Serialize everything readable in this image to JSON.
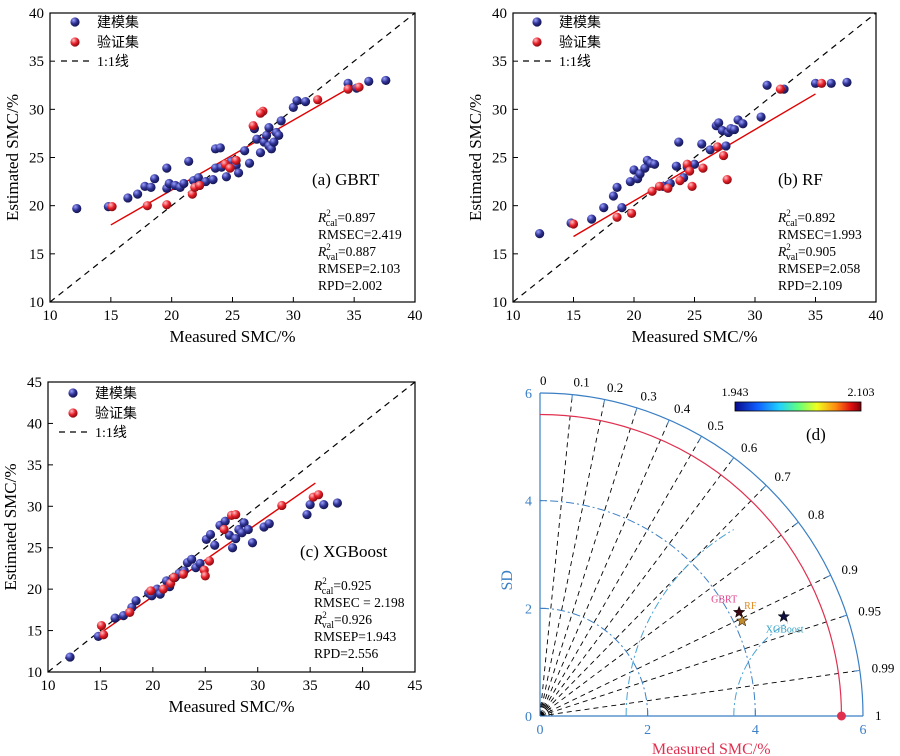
{
  "colors": {
    "train": "#2e3192",
    "train_light": "#8a8fe0",
    "val": "#e8202a",
    "val_light": "#ff9aa0",
    "fit_line": "#e00000",
    "taylor_axis": "#3b7fc4",
    "taylor_ref": "#e03050",
    "taylor_rms": "#4aa3d6",
    "gbrt_label": "#e0408a",
    "rf_label": "#e08a20",
    "xgb_label": "#30a0c0"
  },
  "icons": {
    "train_marker": "blue-sphere-marker-icon",
    "val_marker": "red-sphere-marker-icon",
    "one_to_one": "dashed-line-icon",
    "model_marker": "star-icon"
  },
  "chart_data": [
    {
      "id": "a",
      "type": "scatter",
      "model": "GBRT",
      "panel_label": "(a) GBRT",
      "xlabel": "Measured SMC/%",
      "ylabel": "Estimated SMC/%",
      "xlim": [
        10,
        40
      ],
      "ylim": [
        10,
        40
      ],
      "xticks": [
        10,
        15,
        20,
        25,
        30,
        35,
        40
      ],
      "yticks": [
        10,
        15,
        20,
        25,
        30,
        35,
        40
      ],
      "legend": {
        "position": "top-left",
        "entries": [
          "建模集",
          "验证集",
          "1:1线"
        ]
      },
      "stats": [
        {
          "sym": "R",
          "sup": "2",
          "sub": "cal",
          "text": "=0.897"
        },
        {
          "text": "RMSEC=2.419"
        },
        {
          "sym": "R",
          "sup": "2",
          "sub": "val",
          "text": "=0.887"
        },
        {
          "text": "RMSEP=2.103"
        },
        {
          "text": "RPD=2.002"
        }
      ],
      "fit_line": [
        [
          15,
          18.0
        ],
        [
          35,
          32.5
        ]
      ],
      "series": [
        {
          "name": "建模集",
          "points": [
            [
              12.2,
              19.7
            ],
            [
              14.8,
              19.9
            ],
            [
              16.4,
              20.8
            ],
            [
              17.2,
              21.2
            ],
            [
              17.8,
              22.0
            ],
            [
              18.3,
              21.9
            ],
            [
              18.6,
              22.8
            ],
            [
              19.6,
              21.8
            ],
            [
              19.8,
              22.3
            ],
            [
              19.6,
              23.9
            ],
            [
              20.3,
              22.1
            ],
            [
              20.7,
              21.9
            ],
            [
              21.0,
              22.3
            ],
            [
              21.4,
              24.6
            ],
            [
              21.8,
              22.6
            ],
            [
              22.2,
              22.9
            ],
            [
              22.8,
              22.5
            ],
            [
              23.4,
              22.7
            ],
            [
              23.6,
              23.9
            ],
            [
              23.6,
              25.9
            ],
            [
              24.1,
              24.0
            ],
            [
              24.5,
              23.0
            ],
            [
              24.9,
              24.6
            ],
            [
              25.3,
              24.2
            ],
            [
              25.5,
              23.4
            ],
            [
              26.0,
              25.7
            ],
            [
              26.4,
              24.4
            ],
            [
              27.0,
              26.9
            ],
            [
              27.3,
              25.5
            ],
            [
              27.6,
              26.6
            ],
            [
              27.8,
              27.3
            ],
            [
              28.0,
              26.2
            ],
            [
              28.2,
              25.9
            ],
            [
              28.4,
              26.6
            ],
            [
              28.6,
              27.6
            ],
            [
              28.0,
              28.1
            ],
            [
              28.8,
              27.3
            ],
            [
              29.0,
              28.8
            ],
            [
              30.0,
              30.2
            ],
            [
              30.3,
              30.9
            ],
            [
              31.0,
              30.8
            ],
            [
              34.5,
              32.7
            ],
            [
              35.2,
              32.2
            ],
            [
              36.2,
              32.9
            ],
            [
              37.6,
              33.0
            ],
            [
              24.0,
              26.0
            ],
            [
              26.8,
              28.0
            ]
          ]
        },
        {
          "name": "验证集",
          "points": [
            [
              15.1,
              19.9
            ],
            [
              18.0,
              20.0
            ],
            [
              19.6,
              20.1
            ],
            [
              21.7,
              21.2
            ],
            [
              21.9,
              21.9
            ],
            [
              22.3,
              22.1
            ],
            [
              24.4,
              24.3
            ],
            [
              24.8,
              23.9
            ],
            [
              25.3,
              24.7
            ],
            [
              27.5,
              29.8
            ],
            [
              27.3,
              29.6
            ],
            [
              26.7,
              28.3
            ],
            [
              32.0,
              31.0
            ],
            [
              34.5,
              32.1
            ],
            [
              35.4,
              32.3
            ]
          ]
        }
      ]
    },
    {
      "id": "b",
      "type": "scatter",
      "model": "RF",
      "panel_label": "(b) RF",
      "xlabel": "Measured SMC/%",
      "ylabel": "Estimated SMC/%",
      "xlim": [
        10,
        40
      ],
      "ylim": [
        10,
        40
      ],
      "xticks": [
        10,
        15,
        20,
        25,
        30,
        35,
        40
      ],
      "yticks": [
        10,
        15,
        20,
        25,
        30,
        35,
        40
      ],
      "legend": {
        "position": "top-left",
        "entries": [
          "建模集",
          "验证集",
          "1:1线"
        ]
      },
      "stats": [
        {
          "sym": "R",
          "sup": "2",
          "sub": "cal",
          "text": "=0.892"
        },
        {
          "text": "RMSEC=1.993"
        },
        {
          "sym": "R",
          "sup": "2",
          "sub": "val",
          "text": "=0.905"
        },
        {
          "text": "RMSEP=2.058"
        },
        {
          "text": "RPD=2.109"
        }
      ],
      "fit_line": [
        [
          15,
          16.8
        ],
        [
          35,
          31.6
        ]
      ],
      "series": [
        {
          "name": "建模集",
          "points": [
            [
              12.2,
              17.1
            ],
            [
              14.8,
              18.2
            ],
            [
              16.5,
              18.6
            ],
            [
              17.5,
              19.8
            ],
            [
              18.3,
              21.0
            ],
            [
              18.6,
              21.9
            ],
            [
              19.0,
              19.8
            ],
            [
              19.7,
              22.5
            ],
            [
              20.0,
              23.7
            ],
            [
              20.3,
              22.8
            ],
            [
              20.5,
              23.3
            ],
            [
              20.9,
              23.9
            ],
            [
              21.1,
              24.7
            ],
            [
              21.4,
              24.4
            ],
            [
              21.7,
              24.3
            ],
            [
              22.4,
              22.0
            ],
            [
              23.0,
              22.3
            ],
            [
              23.5,
              24.1
            ],
            [
              23.7,
              26.6
            ],
            [
              24.1,
              22.9
            ],
            [
              24.4,
              24.0
            ],
            [
              25.0,
              24.3
            ],
            [
              25.6,
              26.4
            ],
            [
              26.3,
              25.8
            ],
            [
              26.8,
              28.3
            ],
            [
              27.0,
              28.6
            ],
            [
              27.3,
              27.8
            ],
            [
              27.6,
              26.2
            ],
            [
              27.8,
              27.6
            ],
            [
              28.0,
              28.0
            ],
            [
              28.3,
              27.9
            ],
            [
              28.6,
              28.9
            ],
            [
              29.0,
              28.5
            ],
            [
              30.5,
              29.2
            ],
            [
              31.0,
              32.5
            ],
            [
              32.4,
              32.1
            ],
            [
              35.0,
              32.7
            ],
            [
              36.3,
              32.7
            ],
            [
              37.6,
              32.8
            ]
          ]
        },
        {
          "name": "验证集",
          "points": [
            [
              15.0,
              18.1
            ],
            [
              18.6,
              18.8
            ],
            [
              19.8,
              19.2
            ],
            [
              21.5,
              21.5
            ],
            [
              22.1,
              22.0
            ],
            [
              22.8,
              21.8
            ],
            [
              23.8,
              22.6
            ],
            [
              24.4,
              24.3
            ],
            [
              24.6,
              23.6
            ],
            [
              24.8,
              22.0
            ],
            [
              25.7,
              23.9
            ],
            [
              26.9,
              26.1
            ],
            [
              27.4,
              25.2
            ],
            [
              27.7,
              22.7
            ],
            [
              32.1,
              32.1
            ],
            [
              35.5,
              32.7
            ]
          ]
        }
      ]
    },
    {
      "id": "c",
      "type": "scatter",
      "model": "XGBoost",
      "panel_label": "(c) XGBoost",
      "xlabel": "Measured SMC/%",
      "ylabel": "Estimated SMC/%",
      "xlim": [
        10,
        45
      ],
      "ylim": [
        10,
        45
      ],
      "xticks": [
        10,
        15,
        20,
        25,
        30,
        35,
        40,
        45
      ],
      "yticks": [
        10,
        15,
        20,
        25,
        30,
        35,
        40,
        45
      ],
      "legend": {
        "position": "top-left",
        "entries": [
          "建模集",
          "验证集",
          "1:1线"
        ]
      },
      "stats": [
        {
          "sym": "R",
          "sup": "2",
          "sub": "cal",
          "text": "=0.925"
        },
        {
          "text": "RMSEC = 2.198"
        },
        {
          "sym": "R",
          "sup": "2",
          "sub": "val",
          "text": "=0.926"
        },
        {
          "text": "RMSEP=1.943"
        },
        {
          "text": "RPD=2.556"
        }
      ],
      "fit_line": [
        [
          15,
          14.7
        ],
        [
          35.5,
          32.8
        ]
      ],
      "series": [
        {
          "name": "建模集",
          "points": [
            [
              12.1,
              11.8
            ],
            [
              14.8,
              14.3
            ],
            [
              16.4,
              16.5
            ],
            [
              17.2,
              16.8
            ],
            [
              18.0,
              17.8
            ],
            [
              18.4,
              18.6
            ],
            [
              19.6,
              19.5
            ],
            [
              19.9,
              19.2
            ],
            [
              20.4,
              20.0
            ],
            [
              20.7,
              19.4
            ],
            [
              21.3,
              21.0
            ],
            [
              21.6,
              20.3
            ],
            [
              22.1,
              21.4
            ],
            [
              22.5,
              21.9
            ],
            [
              23.0,
              22.2
            ],
            [
              23.3,
              23.2
            ],
            [
              23.7,
              23.6
            ],
            [
              24.1,
              22.6
            ],
            [
              24.5,
              23.1
            ],
            [
              25.1,
              26.0
            ],
            [
              25.5,
              26.6
            ],
            [
              25.9,
              25.3
            ],
            [
              26.4,
              27.7
            ],
            [
              26.9,
              28.2
            ],
            [
              27.3,
              26.5
            ],
            [
              27.6,
              25.0
            ],
            [
              27.9,
              26.1
            ],
            [
              28.2,
              27.2
            ],
            [
              28.5,
              26.8
            ],
            [
              28.7,
              28.0
            ],
            [
              29.1,
              27.2
            ],
            [
              29.5,
              25.6
            ],
            [
              30.6,
              27.5
            ],
            [
              31.1,
              27.9
            ],
            [
              34.7,
              29.0
            ],
            [
              35.0,
              30.2
            ],
            [
              36.3,
              30.2
            ],
            [
              37.6,
              30.4
            ]
          ]
        },
        {
          "name": "验证集",
          "points": [
            [
              15.1,
              15.6
            ],
            [
              15.3,
              14.5
            ],
            [
              17.8,
              17.2
            ],
            [
              19.8,
              19.8
            ],
            [
              21.0,
              20.0
            ],
            [
              21.7,
              20.7
            ],
            [
              22.0,
              21.4
            ],
            [
              22.9,
              21.8
            ],
            [
              24.9,
              22.3
            ],
            [
              25.0,
              21.6
            ],
            [
              25.4,
              23.4
            ],
            [
              26.8,
              27.2
            ],
            [
              27.5,
              28.9
            ],
            [
              27.9,
              29.0
            ],
            [
              32.3,
              30.1
            ],
            [
              35.3,
              31.1
            ],
            [
              35.8,
              31.4
            ]
          ]
        }
      ]
    },
    {
      "id": "d",
      "type": "taylor",
      "panel_label": "(d)",
      "xlabel": "Measured SMC/%",
      "ylabel": "SD",
      "sd_max": 6,
      "sd_ticks": [
        0,
        2,
        4,
        6
      ],
      "correlation_ticks": [
        "0",
        "0.1",
        "0.2",
        "0.3",
        "0.4",
        "0.5",
        "0.6",
        "0.7",
        "0.8",
        "0.9",
        "0.95",
        "0.99",
        "1"
      ],
      "correlation_values": [
        0,
        0.1,
        0.2,
        0.3,
        0.4,
        0.5,
        0.6,
        0.7,
        0.8,
        0.9,
        0.95,
        0.99,
        1
      ],
      "reference_sd": 5.6,
      "rms_contours": [
        2,
        4
      ],
      "colorbar": {
        "min_label": "1.943",
        "max_label": "2.103",
        "min": 1.943,
        "max": 2.103
      },
      "models": [
        {
          "name": "GBRT",
          "sd": 4.17,
          "corr": 0.887,
          "value": 2.103
        },
        {
          "name": "RF",
          "sd": 4.15,
          "corr": 0.905,
          "value": 2.058
        },
        {
          "name": "XGBoost",
          "sd": 4.89,
          "corr": 0.926,
          "value": 1.943
        }
      ]
    }
  ]
}
